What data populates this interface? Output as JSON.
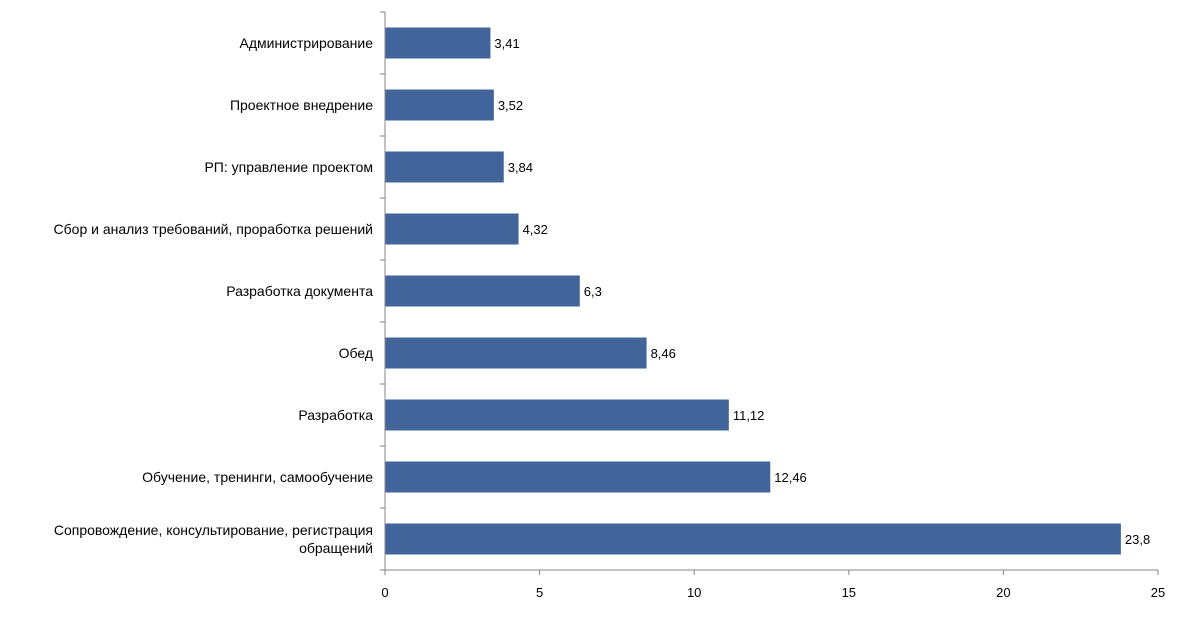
{
  "chart_data": {
    "type": "bar",
    "orientation": "horizontal",
    "title": "",
    "xlabel": "",
    "ylabel": "",
    "xlim": [
      0,
      25
    ],
    "x_ticks": [
      0,
      5,
      10,
      15,
      20,
      25
    ],
    "x_tick_labels": [
      "0",
      "5",
      "10",
      "15",
      "20",
      "25"
    ],
    "grid": false,
    "legend": "none",
    "bar_color": "#41649A",
    "categories": [
      "Администрирование",
      "Проектное внедрение",
      "РП: управление проектом",
      "Сбор и анализ требований, проработка решений",
      "Разработка документа",
      "Обед",
      "Разработка",
      "Обучение, тренинги, самообучение",
      "Сопровождение, консультирование, регистрация обращений"
    ],
    "category_lines": [
      [
        "Администрирование"
      ],
      [
        "Проектное внедрение"
      ],
      [
        "РП: управление проектом"
      ],
      [
        "Сбор и анализ требований, проработка решений"
      ],
      [
        "Разработка документа"
      ],
      [
        "Обед"
      ],
      [
        "Разработка"
      ],
      [
        "Обучение, тренинги, самообучение"
      ],
      [
        "Сопровождение, консультирование, регистрация",
        "обращений"
      ]
    ],
    "values": [
      3.41,
      3.52,
      3.84,
      4.32,
      6.3,
      8.46,
      11.12,
      12.46,
      23.8
    ],
    "value_labels": [
      "3,41",
      "3,52",
      "3,84",
      "4,32",
      "6,3",
      "8,46",
      "11,12",
      "12,46",
      "23,8"
    ]
  }
}
